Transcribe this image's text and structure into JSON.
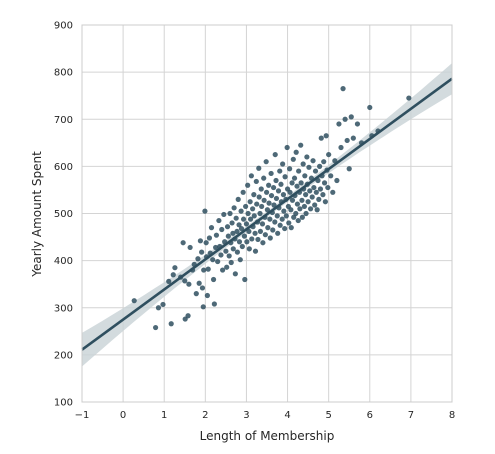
{
  "chart_data": {
    "type": "scatter",
    "title": "",
    "xlabel": "Length of Membership",
    "ylabel": "Yearly Amount Spent",
    "xlim": [
      -1,
      8
    ],
    "ylim": [
      100,
      900
    ],
    "x_ticks": [
      "−1",
      "0",
      "1",
      "2",
      "3",
      "4",
      "5",
      "6",
      "7",
      "8"
    ],
    "y_ticks": [
      "100",
      "200",
      "300",
      "400",
      "500",
      "600",
      "700",
      "800",
      "900"
    ],
    "grid": true,
    "colors": {
      "points": "#2f4f5f",
      "line": "#2f4f5f",
      "band": "#c8d2d6",
      "grid": "#d4d4d4",
      "axes": "#cccccc"
    },
    "regression": {
      "x": [
        -1,
        8
      ],
      "y": [
        211,
        786
      ]
    },
    "points": [
      [
        0.27,
        315
      ],
      [
        0.79,
        258
      ],
      [
        0.86,
        300
      ],
      [
        0.97,
        307
      ],
      [
        1.11,
        356
      ],
      [
        1.17,
        266
      ],
      [
        1.22,
        370
      ],
      [
        1.26,
        385
      ],
      [
        1.4,
        365
      ],
      [
        1.46,
        438
      ],
      [
        1.5,
        357
      ],
      [
        1.51,
        276
      ],
      [
        1.58,
        283
      ],
      [
        1.6,
        350
      ],
      [
        1.63,
        428
      ],
      [
        1.69,
        380
      ],
      [
        1.73,
        392
      ],
      [
        1.78,
        330
      ],
      [
        1.82,
        404
      ],
      [
        1.85,
        352
      ],
      [
        1.88,
        442
      ],
      [
        1.91,
        418
      ],
      [
        1.93,
        342
      ],
      [
        1.95,
        302
      ],
      [
        1.96,
        380
      ],
      [
        1.99,
        505
      ],
      [
        2.02,
        438
      ],
      [
        2.03,
        408
      ],
      [
        2.05,
        326
      ],
      [
        2.07,
        382
      ],
      [
        2.1,
        448
      ],
      [
        2.12,
        416
      ],
      [
        2.15,
        470
      ],
      [
        2.18,
        402
      ],
      [
        2.2,
        360
      ],
      [
        2.22,
        308
      ],
      [
        2.25,
        428
      ],
      [
        2.27,
        454
      ],
      [
        2.3,
        398
      ],
      [
        2.33,
        485
      ],
      [
        2.35,
        430
      ],
      [
        2.38,
        412
      ],
      [
        2.4,
        466
      ],
      [
        2.42,
        380
      ],
      [
        2.45,
        498
      ],
      [
        2.47,
        440
      ],
      [
        2.5,
        420
      ],
      [
        2.52,
        386
      ],
      [
        2.54,
        472
      ],
      [
        2.56,
        452
      ],
      [
        2.58,
        410
      ],
      [
        2.6,
        500
      ],
      [
        2.62,
        438
      ],
      [
        2.63,
        396
      ],
      [
        2.65,
        480
      ],
      [
        2.67,
        458
      ],
      [
        2.68,
        425
      ],
      [
        2.7,
        512
      ],
      [
        2.72,
        446
      ],
      [
        2.73,
        372
      ],
      [
        2.75,
        490
      ],
      [
        2.77,
        462
      ],
      [
        2.78,
        418
      ],
      [
        2.8,
        530
      ],
      [
        2.82,
        476
      ],
      [
        2.83,
        440
      ],
      [
        2.85,
        402
      ],
      [
        2.87,
        505
      ],
      [
        2.88,
        468
      ],
      [
        2.9,
        430
      ],
      [
        2.92,
        545
      ],
      [
        2.93,
        488
      ],
      [
        2.95,
        452
      ],
      [
        2.96,
        360
      ],
      [
        2.98,
        515
      ],
      [
        3.0,
        478
      ],
      [
        3.01,
        440
      ],
      [
        3.03,
        560
      ],
      [
        3.04,
        500
      ],
      [
        3.06,
        462
      ],
      [
        3.07,
        425
      ],
      [
        3.09,
        525
      ],
      [
        3.1,
        488
      ],
      [
        3.12,
        580
      ],
      [
        3.13,
        446
      ],
      [
        3.15,
        510
      ],
      [
        3.16,
        472
      ],
      [
        3.18,
        540
      ],
      [
        3.19,
        495
      ],
      [
        3.21,
        458
      ],
      [
        3.22,
        420
      ],
      [
        3.24,
        568
      ],
      [
        3.25,
        520
      ],
      [
        3.27,
        482
      ],
      [
        3.28,
        445
      ],
      [
        3.3,
        596
      ],
      [
        3.31,
        535
      ],
      [
        3.33,
        500
      ],
      [
        3.34,
        462
      ],
      [
        3.36,
        552
      ],
      [
        3.37,
        515
      ],
      [
        3.39,
        478
      ],
      [
        3.4,
        438
      ],
      [
        3.42,
        575
      ],
      [
        3.43,
        528
      ],
      [
        3.45,
        492
      ],
      [
        3.46,
        455
      ],
      [
        3.48,
        610
      ],
      [
        3.49,
        545
      ],
      [
        3.51,
        508
      ],
      [
        3.52,
        470
      ],
      [
        3.54,
        560
      ],
      [
        3.55,
        522
      ],
      [
        3.57,
        488
      ],
      [
        3.58,
        448
      ],
      [
        3.6,
        585
      ],
      [
        3.61,
        538
      ],
      [
        3.63,
        502
      ],
      [
        3.64,
        465
      ],
      [
        3.66,
        555
      ],
      [
        3.67,
        518
      ],
      [
        3.69,
        482
      ],
      [
        3.7,
        625
      ],
      [
        3.72,
        570
      ],
      [
        3.73,
        532
      ],
      [
        3.75,
        495
      ],
      [
        3.76,
        458
      ],
      [
        3.78,
        548
      ],
      [
        3.79,
        512
      ],
      [
        3.81,
        590
      ],
      [
        3.82,
        475
      ],
      [
        3.84,
        562
      ],
      [
        3.85,
        525
      ],
      [
        3.87,
        488
      ],
      [
        3.88,
        605
      ],
      [
        3.9,
        540
      ],
      [
        3.91,
        505
      ],
      [
        3.93,
        468
      ],
      [
        3.94,
        578
      ],
      [
        3.96,
        530
      ],
      [
        3.97,
        495
      ],
      [
        3.99,
        640
      ],
      [
        4.0,
        552
      ],
      [
        4.02,
        515
      ],
      [
        4.03,
        480
      ],
      [
        4.05,
        595
      ],
      [
        4.06,
        545
      ],
      [
        4.08,
        508
      ],
      [
        4.09,
        470
      ],
      [
        4.11,
        565
      ],
      [
        4.12,
        528
      ],
      [
        4.14,
        615
      ],
      [
        4.15,
        492
      ],
      [
        4.17,
        575
      ],
      [
        4.18,
        538
      ],
      [
        4.2,
        500
      ],
      [
        4.21,
        630
      ],
      [
        4.23,
        558
      ],
      [
        4.24,
        520
      ],
      [
        4.26,
        485
      ],
      [
        4.27,
        590
      ],
      [
        4.29,
        545
      ],
      [
        4.3,
        510
      ],
      [
        4.32,
        645
      ],
      [
        4.33,
        565
      ],
      [
        4.35,
        528
      ],
      [
        4.36,
        492
      ],
      [
        4.38,
        605
      ],
      [
        4.39,
        552
      ],
      [
        4.41,
        515
      ],
      [
        4.42,
        580
      ],
      [
        4.44,
        540
      ],
      [
        4.45,
        500
      ],
      [
        4.47,
        620
      ],
      [
        4.48,
        562
      ],
      [
        4.5,
        525
      ],
      [
        4.52,
        598
      ],
      [
        4.54,
        548
      ],
      [
        4.56,
        510
      ],
      [
        4.58,
        575
      ],
      [
        4.6,
        535
      ],
      [
        4.62,
        612
      ],
      [
        4.64,
        555
      ],
      [
        4.66,
        518
      ],
      [
        4.68,
        590
      ],
      [
        4.7,
        545
      ],
      [
        4.72,
        508
      ],
      [
        4.74,
        570
      ],
      [
        4.76,
        530
      ],
      [
        4.78,
        600
      ],
      [
        4.8,
        552
      ],
      [
        4.82,
        660
      ],
      [
        4.84,
        580
      ],
      [
        4.86,
        540
      ],
      [
        4.88,
        610
      ],
      [
        4.9,
        565
      ],
      [
        4.92,
        525
      ],
      [
        4.94,
        665
      ],
      [
        4.96,
        592
      ],
      [
        4.98,
        555
      ],
      [
        5.0,
        625
      ],
      [
        5.05,
        580
      ],
      [
        5.1,
        545
      ],
      [
        5.15,
        612
      ],
      [
        5.2,
        570
      ],
      [
        5.25,
        690
      ],
      [
        5.3,
        640
      ],
      [
        5.35,
        765
      ],
      [
        5.4,
        700
      ],
      [
        5.45,
        655
      ],
      [
        5.5,
        595
      ],
      [
        5.55,
        705
      ],
      [
        5.6,
        660
      ],
      [
        5.7,
        690
      ],
      [
        5.8,
        650
      ],
      [
        6.0,
        725
      ],
      [
        6.05,
        665
      ],
      [
        6.2,
        675
      ],
      [
        6.95,
        745
      ]
    ]
  }
}
